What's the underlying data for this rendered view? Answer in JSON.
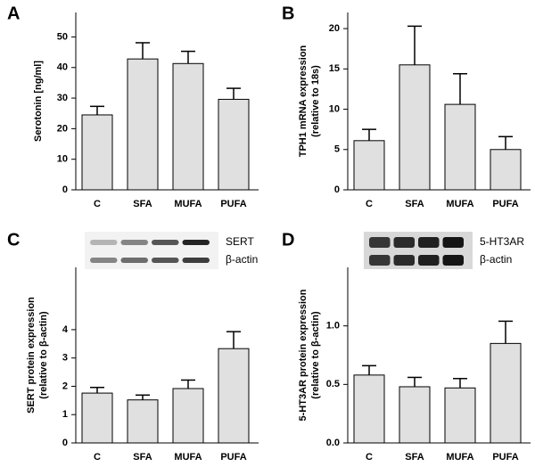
{
  "chart_data": [
    {
      "type": "bar",
      "panel_label": "A",
      "ylabel": [
        "Serotonin [ng/ml]"
      ],
      "categories": [
        "C",
        "SFA",
        "MUFA",
        "PUFA"
      ],
      "values": [
        24.5,
        42.8,
        41.3,
        29.6
      ],
      "errors": [
        2.8,
        5.3,
        4.0,
        3.6
      ],
      "color": "#e0e0e0",
      "ylim": [
        0,
        58
      ],
      "yticks": [
        0,
        10,
        20,
        30,
        40,
        50
      ]
    },
    {
      "type": "bar",
      "panel_label": "B",
      "ylabel": [
        "TPH1 mRNA expression",
        "(relative to 18s)"
      ],
      "categories": [
        "C",
        "SFA",
        "MUFA",
        "PUFA"
      ],
      "values": [
        6.1,
        15.5,
        10.6,
        5.0
      ],
      "errors": [
        1.4,
        4.8,
        3.8,
        1.6
      ],
      "color": "#e0e0e0",
      "ylim": [
        0,
        22
      ],
      "yticks": [
        0,
        5,
        10,
        15,
        20
      ]
    },
    {
      "type": "bar",
      "panel_label": "C",
      "ylabel": [
        "SERT protein expression",
        "(relative to β-actin)"
      ],
      "blot_labels": [
        "SERT",
        "β-actin"
      ],
      "categories": [
        "C",
        "SFA",
        "MUFA",
        "PUFA"
      ],
      "values": [
        1.76,
        1.52,
        1.92,
        3.33
      ],
      "errors": [
        0.2,
        0.17,
        0.3,
        0.6
      ],
      "color": "#e0e0e0",
      "ylim": [
        0,
        6.2
      ],
      "yticks": [
        0,
        1,
        2,
        3,
        4
      ]
    },
    {
      "type": "bar",
      "panel_label": "D",
      "ylabel": [
        "5-HT3AR protein expression",
        "(relative to β-actin)"
      ],
      "blot_labels": [
        "5-HT3AR",
        "β-actin"
      ],
      "categories": [
        "C",
        "SFA",
        "MUFA",
        "PUFA"
      ],
      "values": [
        0.58,
        0.48,
        0.47,
        0.85
      ],
      "errors": [
        0.08,
        0.08,
        0.08,
        0.19
      ],
      "color": "#e0e0e0",
      "ylim": [
        0,
        1.5
      ],
      "yticks": [
        {
          "value": 0,
          "label": "0.0"
        },
        {
          "value": 0.5,
          "label": "0.5"
        },
        {
          "value": 1,
          "label": "1.0"
        }
      ]
    }
  ]
}
